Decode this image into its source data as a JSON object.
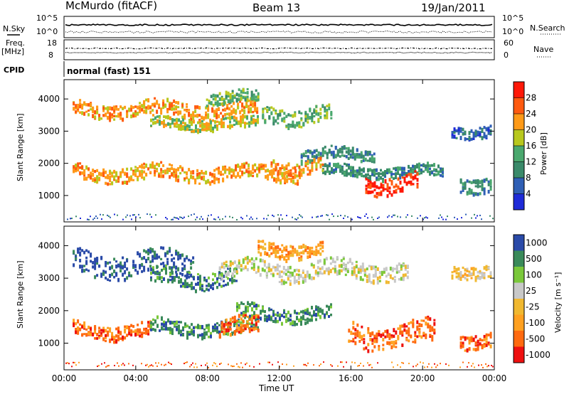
{
  "header": {
    "station": "McMurdo (fitACF)",
    "beam": "Beam 13",
    "date": "19/Jan/2011"
  },
  "noise_panel": {
    "left_label": "N.Sky",
    "right_label": "N.Search",
    "tick_top": "10^5",
    "tick_bottom": "10^0"
  },
  "freq_panel": {
    "left_label_1": "Freq.",
    "left_label_2": "[MHz]",
    "left_tick_top": "18",
    "left_tick_bottom": "8",
    "right_label": "Nave",
    "right_tick_top": "60",
    "right_tick_bottom": "0"
  },
  "cpid_panel": {
    "label": "CPID",
    "text": "normal (fast) 151"
  },
  "colors": {
    "power_scale": [
      "#1e2bd8",
      "#2f5fb5",
      "#3a8a6a",
      "#4aa86e",
      "#b8c81e",
      "#ff9a18",
      "#ff5a10",
      "#ff1808"
    ],
    "velocity_scale": [
      "#ee1010",
      "#ff6a10",
      "#ffa020",
      "#f0b830",
      "#c8c8c8",
      "#7ac83a",
      "#3a8a5a",
      "#2a4aa8"
    ]
  },
  "chart_data": [
    {
      "type": "heatmap",
      "title": "Power",
      "ylabel": "Slant Range [km]",
      "xlabel": "",
      "ylim": [
        180,
        4600
      ],
      "y_ticks": [
        "1000",
        "2000",
        "3000",
        "4000"
      ],
      "x_ticks": [
        "00:00",
        "04:00",
        "08:00",
        "12:00",
        "16:00",
        "20:00",
        "00:00"
      ],
      "colorbar_label": "Power [dB]",
      "colorbar_ticks": [
        "4",
        "8",
        "12",
        "16",
        "20",
        "24",
        "28"
      ],
      "grid": false
    },
    {
      "type": "heatmap",
      "title": "Velocity",
      "ylabel": "Slant Range [km]",
      "xlabel": "Time UT",
      "ylim": [
        180,
        4600
      ],
      "y_ticks": [
        "1000",
        "2000",
        "3000",
        "4000"
      ],
      "x_ticks": [
        "00:00",
        "04:00",
        "08:00",
        "12:00",
        "16:00",
        "20:00",
        "00:00"
      ],
      "colorbar_label": "Velocity [m s⁻¹]",
      "colorbar_ticks": [
        "-1000",
        "-500",
        "-100",
        "-25",
        "25",
        "100",
        "500",
        "1000"
      ],
      "grid": false
    }
  ]
}
